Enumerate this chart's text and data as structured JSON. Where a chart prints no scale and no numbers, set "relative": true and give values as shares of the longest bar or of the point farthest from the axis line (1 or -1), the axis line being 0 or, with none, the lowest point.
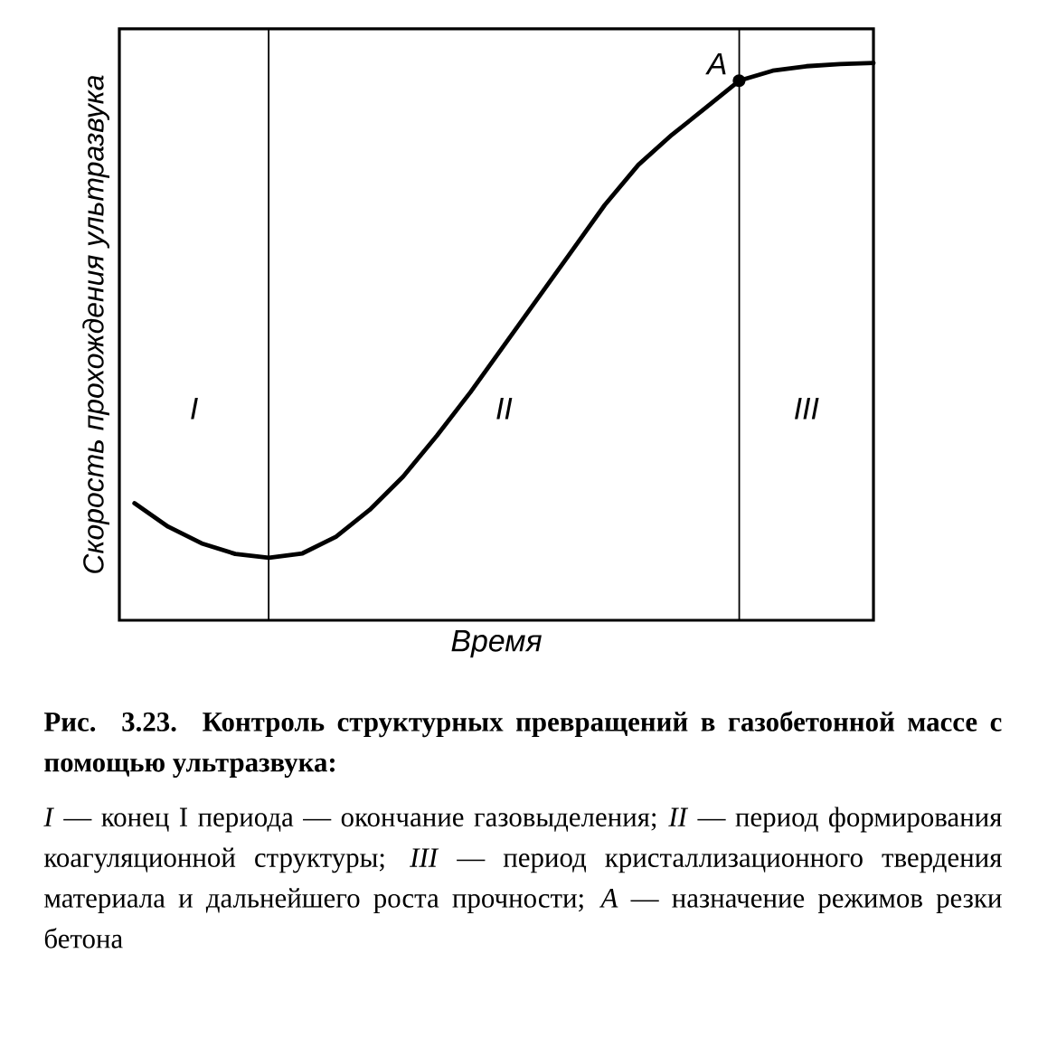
{
  "chart_data": {
    "type": "line",
    "relative": true,
    "xlabel": "Время",
    "ylabel": "Скорость прохождения ультразвука",
    "categories": [
      null,
      null,
      null,
      null,
      null,
      null,
      null,
      null,
      null,
      null,
      null,
      null,
      null,
      null,
      null,
      null,
      null,
      null,
      null,
      null,
      null,
      null,
      null
    ],
    "values": [
      0.21,
      0.168,
      0.138,
      0.119,
      0.112,
      0.12,
      0.15,
      0.198,
      0.258,
      0.331,
      0.409,
      0.493,
      0.577,
      0.661,
      0.745,
      0.817,
      0.871,
      0.919,
      0.968,
      0.986,
      0.994,
      0.998,
      1
    ],
    "color": "#000000",
    "marker": "none",
    "line_style": "solid",
    "annotations": [
      "A",
      "I",
      "II",
      "III",
      "Рис. 3.23. Контроль структурных превращений в газобетонной массе с помощью ультразвука:",
      "*I* — конец I периода — окончание газовыделения; *II* — период формирования коагуляционной структуры; *III* — период кристаллизационного твердения материала и дальнейшего роста прочности; *A* — назначение режимов резки бетона"
    ]
  }
}
